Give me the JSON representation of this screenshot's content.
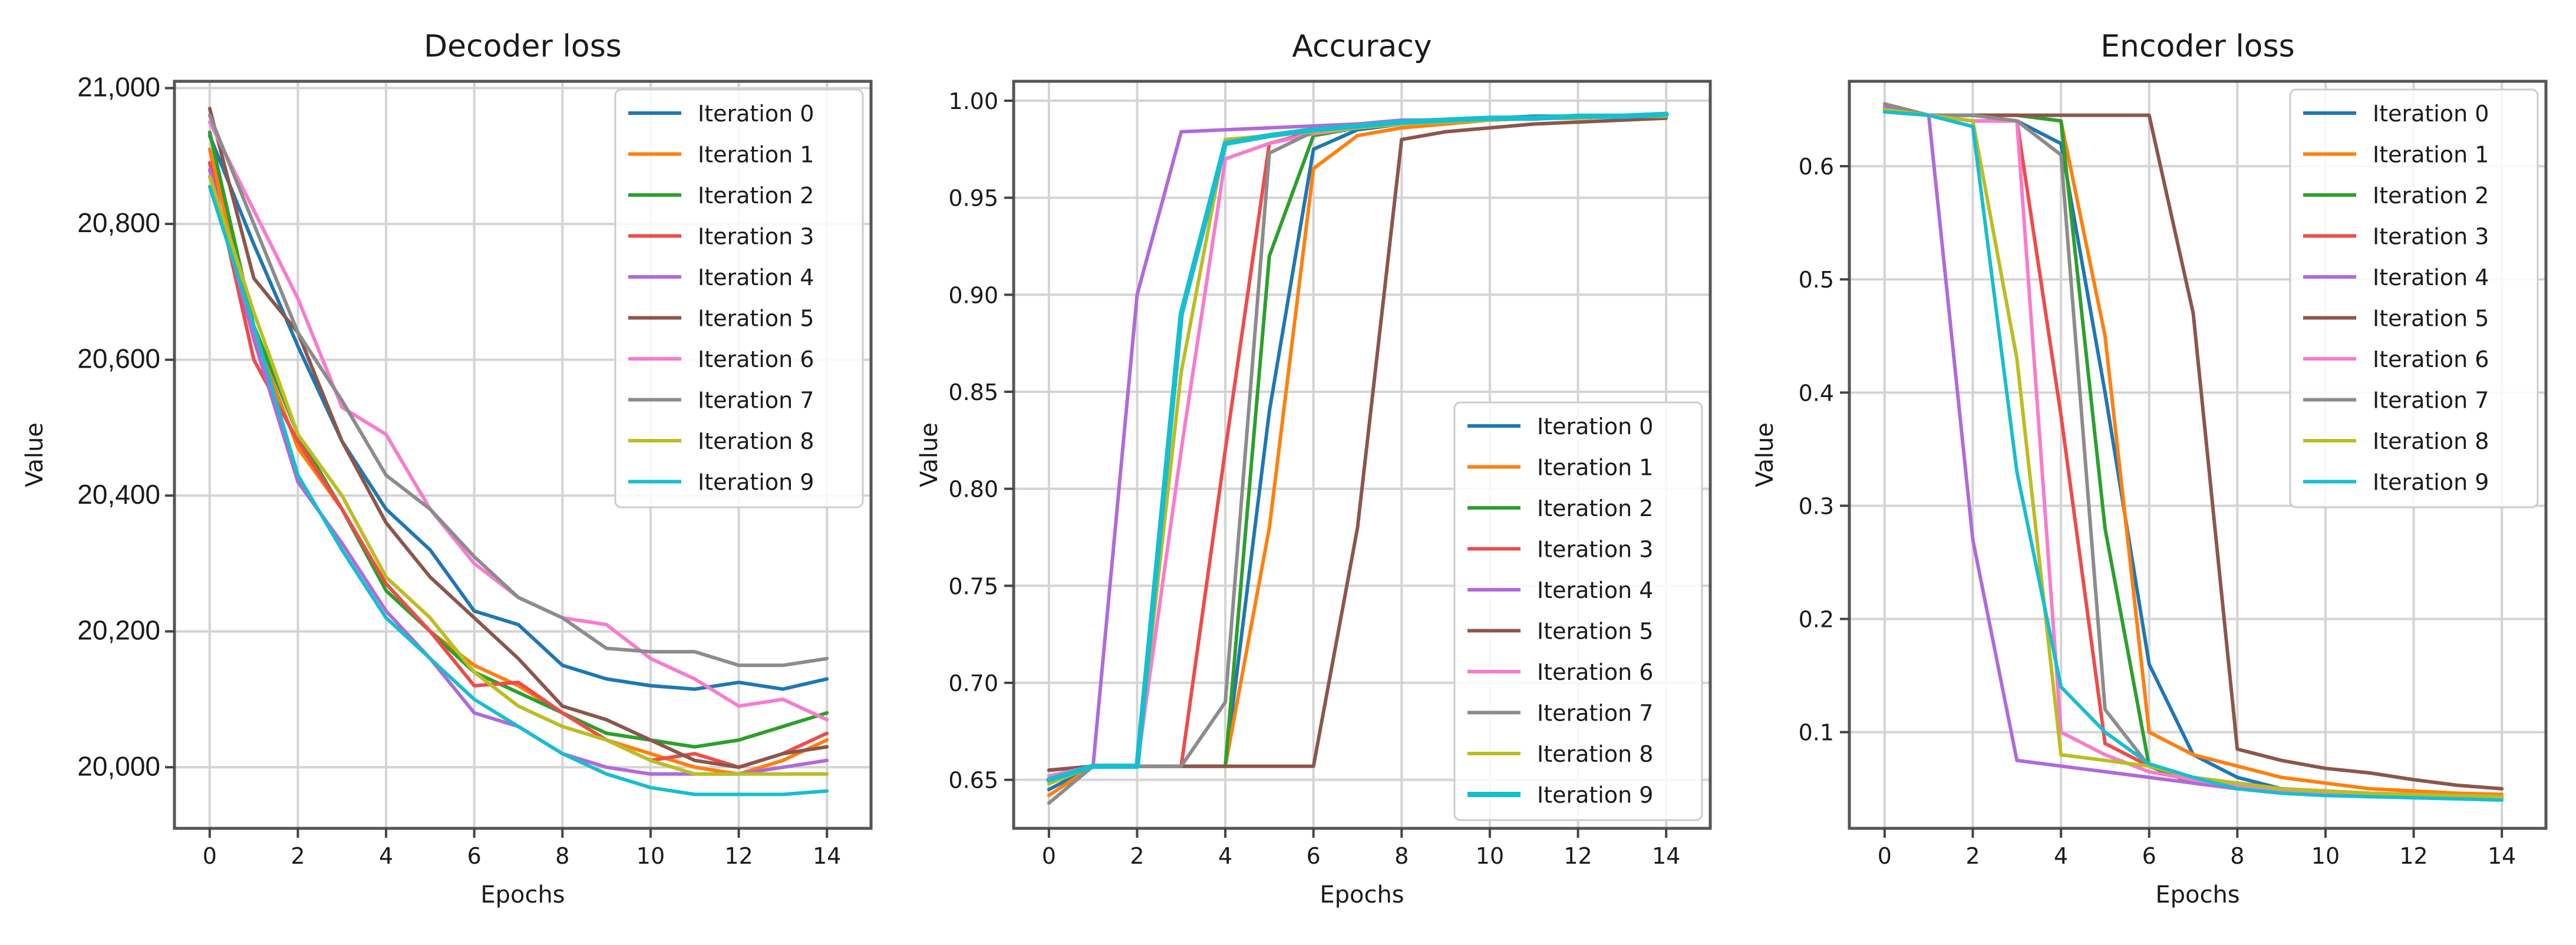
{
  "chart_data": [
    {
      "type": "line",
      "title": "Decoder loss",
      "xlabel": "Epochs",
      "ylabel": "Value",
      "xlim": [
        -0.8,
        15
      ],
      "ylim": [
        19910,
        21010
      ],
      "xticks": [
        "0",
        "2",
        "4",
        "6",
        "8",
        "10",
        "12",
        "14"
      ],
      "xtick_values": [
        0,
        2,
        4,
        6,
        8,
        10,
        12,
        14
      ],
      "yticks": [
        "20,000",
        "20,200",
        "20,400",
        "20,600",
        "20,800",
        "21,000"
      ],
      "ytick_values": [
        20000,
        20200,
        20400,
        20600,
        20800,
        21000
      ],
      "grid": true,
      "legend_position": "top-right",
      "x": [
        0,
        1,
        2,
        3,
        4,
        5,
        6,
        7,
        8,
        9,
        10,
        11,
        12,
        13,
        14
      ],
      "series": [
        {
          "name": "Iteration 0",
          "color": "#1f77b4",
          "values": [
            20930,
            20770,
            20620,
            20480,
            20380,
            20320,
            20230,
            20210,
            20150,
            20130,
            20120,
            20115,
            20125,
            20115,
            20130
          ]
        },
        {
          "name": "Iteration 1",
          "color": "#ff7f0e",
          "values": [
            20910,
            20640,
            20470,
            20380,
            20270,
            20200,
            20150,
            20120,
            20080,
            20040,
            20020,
            20000,
            19990,
            20010,
            20040
          ]
        },
        {
          "name": "Iteration 2",
          "color": "#2ca02c",
          "values": [
            20935,
            20650,
            20490,
            20380,
            20260,
            20200,
            20140,
            20110,
            20080,
            20050,
            20040,
            20030,
            20040,
            20060,
            20080
          ]
        },
        {
          "name": "Iteration 3",
          "color": "#ef4b4b",
          "values": [
            20890,
            20600,
            20480,
            20380,
            20270,
            20200,
            20120,
            20125,
            20080,
            20040,
            20010,
            20020,
            20000,
            20020,
            20050
          ]
        },
        {
          "name": "Iteration 4",
          "color": "#b06ad9",
          "values": [
            20880,
            20630,
            20420,
            20330,
            20230,
            20160,
            20080,
            20060,
            20020,
            20000,
            19990,
            19990,
            19990,
            20000,
            20010
          ]
        },
        {
          "name": "Iteration 5",
          "color": "#8c564b",
          "values": [
            20970,
            20720,
            20640,
            20480,
            20360,
            20280,
            20220,
            20160,
            20090,
            20070,
            20040,
            20010,
            20000,
            20020,
            20030
          ]
        },
        {
          "name": "Iteration 6",
          "color": "#f77ccd",
          "values": [
            20950,
            20820,
            20690,
            20530,
            20490,
            20380,
            20300,
            20250,
            20220,
            20210,
            20160,
            20130,
            20090,
            20100,
            20070
          ]
        },
        {
          "name": "Iteration 7",
          "color": "#8c8c8c",
          "values": [
            20960,
            20800,
            20640,
            20540,
            20430,
            20380,
            20310,
            20250,
            20220,
            20175,
            20170,
            20170,
            20150,
            20150,
            20160
          ]
        },
        {
          "name": "Iteration 8",
          "color": "#bcbd22",
          "values": [
            20870,
            20670,
            20490,
            20400,
            20280,
            20220,
            20140,
            20090,
            20060,
            20040,
            20010,
            19990,
            19990,
            19990,
            19990
          ]
        },
        {
          "name": "Iteration 9",
          "color": "#17becf",
          "values": [
            20855,
            20650,
            20430,
            20320,
            20220,
            20160,
            20100,
            20060,
            20020,
            19990,
            19970,
            19960,
            19960,
            19960,
            19965
          ]
        }
      ]
    },
    {
      "type": "line",
      "title": "Accuracy",
      "xlabel": "Epochs",
      "ylabel": "Value",
      "xlim": [
        -0.8,
        15
      ],
      "ylim": [
        0.625,
        1.01
      ],
      "xticks": [
        "0",
        "2",
        "4",
        "6",
        "8",
        "10",
        "12",
        "14"
      ],
      "xtick_values": [
        0,
        2,
        4,
        6,
        8,
        10,
        12,
        14
      ],
      "yticks": [
        "0.65",
        "0.70",
        "0.75",
        "0.80",
        "0.85",
        "0.90",
        "0.95",
        "1.00"
      ],
      "ytick_values": [
        0.65,
        0.7,
        0.75,
        0.8,
        0.85,
        0.9,
        0.95,
        1.0
      ],
      "grid": true,
      "legend_position": "bottom-right",
      "x": [
        0,
        1,
        2,
        3,
        4,
        5,
        6,
        7,
        8,
        9,
        10,
        11,
        12,
        13,
        14
      ],
      "series": [
        {
          "name": "Iteration 0",
          "color": "#1f77b4",
          "values": [
            0.645,
            0.657,
            0.657,
            0.657,
            0.657,
            0.84,
            0.975,
            0.985,
            0.988,
            0.99,
            0.991,
            0.992,
            0.992,
            0.992,
            0.993
          ]
        },
        {
          "name": "Iteration 1",
          "color": "#ff7f0e",
          "values": [
            0.642,
            0.657,
            0.657,
            0.657,
            0.657,
            0.78,
            0.965,
            0.982,
            0.986,
            0.988,
            0.99,
            0.991,
            0.991,
            0.992,
            0.992
          ]
        },
        {
          "name": "Iteration 2",
          "color": "#2ca02c",
          "values": [
            0.65,
            0.657,
            0.657,
            0.657,
            0.657,
            0.92,
            0.982,
            0.986,
            0.988,
            0.99,
            0.991,
            0.991,
            0.992,
            0.992,
            0.992
          ]
        },
        {
          "name": "Iteration 3",
          "color": "#ef4b4b",
          "values": [
            0.655,
            0.657,
            0.657,
            0.657,
            0.82,
            0.978,
            0.984,
            0.987,
            0.989,
            0.99,
            0.991,
            0.991,
            0.992,
            0.992,
            0.992
          ]
        },
        {
          "name": "Iteration 4",
          "color": "#b06ad9",
          "values": [
            0.655,
            0.657,
            0.9,
            0.984,
            0.985,
            0.986,
            0.987,
            0.988,
            0.99,
            0.99,
            0.991,
            0.991,
            0.992,
            0.992,
            0.992
          ]
        },
        {
          "name": "Iteration 5",
          "color": "#8c564b",
          "values": [
            0.655,
            0.657,
            0.657,
            0.657,
            0.657,
            0.657,
            0.657,
            0.78,
            0.98,
            0.984,
            0.986,
            0.988,
            0.989,
            0.99,
            0.991
          ]
        },
        {
          "name": "Iteration 6",
          "color": "#f77ccd",
          "values": [
            0.652,
            0.657,
            0.657,
            0.82,
            0.97,
            0.978,
            0.983,
            0.986,
            0.988,
            0.989,
            0.99,
            0.991,
            0.991,
            0.992,
            0.992
          ]
        },
        {
          "name": "Iteration 7",
          "color": "#8c8c8c",
          "values": [
            0.638,
            0.657,
            0.657,
            0.657,
            0.69,
            0.973,
            0.984,
            0.987,
            0.988,
            0.99,
            0.991,
            0.991,
            0.992,
            0.992,
            0.992
          ]
        },
        {
          "name": "Iteration 8",
          "color": "#bcbd22",
          "values": [
            0.648,
            0.657,
            0.657,
            0.86,
            0.98,
            0.982,
            0.984,
            0.986,
            0.988,
            0.989,
            0.99,
            0.991,
            0.991,
            0.992,
            0.992
          ]
        },
        {
          "name": "Iteration 9",
          "color": "#17becf",
          "values": [
            0.65,
            0.657,
            0.657,
            0.89,
            0.978,
            0.982,
            0.985,
            0.987,
            0.989,
            0.99,
            0.991,
            0.991,
            0.992,
            0.992,
            0.993
          ]
        }
      ]
    },
    {
      "type": "line",
      "title": "Encoder loss",
      "xlabel": "Epochs",
      "ylabel": "Value",
      "xlim": [
        -0.8,
        15
      ],
      "ylim": [
        0.015,
        0.675
      ],
      "xticks": [
        "0",
        "2",
        "4",
        "6",
        "8",
        "10",
        "12",
        "14"
      ],
      "xtick_values": [
        0,
        2,
        4,
        6,
        8,
        10,
        12,
        14
      ],
      "yticks": [
        "0.1",
        "0.2",
        "0.3",
        "0.4",
        "0.5",
        "0.6"
      ],
      "ytick_values": [
        0.1,
        0.2,
        0.3,
        0.4,
        0.5,
        0.6
      ],
      "grid": true,
      "legend_position": "top-right",
      "x": [
        0,
        1,
        2,
        3,
        4,
        5,
        6,
        7,
        8,
        9,
        10,
        11,
        12,
        13,
        14
      ],
      "series": [
        {
          "name": "Iteration 0",
          "color": "#1f77b4",
          "values": [
            0.65,
            0.645,
            0.64,
            0.64,
            0.62,
            0.4,
            0.16,
            0.08,
            0.06,
            0.05,
            0.048,
            0.046,
            0.045,
            0.044,
            0.043
          ]
        },
        {
          "name": "Iteration 1",
          "color": "#ff7f0e",
          "values": [
            0.648,
            0.645,
            0.645,
            0.645,
            0.64,
            0.45,
            0.1,
            0.08,
            0.07,
            0.06,
            0.055,
            0.05,
            0.048,
            0.046,
            0.045
          ]
        },
        {
          "name": "Iteration 2",
          "color": "#2ca02c",
          "values": [
            0.65,
            0.645,
            0.645,
            0.645,
            0.64,
            0.28,
            0.07,
            0.055,
            0.05,
            0.048,
            0.046,
            0.045,
            0.044,
            0.043,
            0.042
          ]
        },
        {
          "name": "Iteration 3",
          "color": "#ef4b4b",
          "values": [
            0.65,
            0.645,
            0.645,
            0.64,
            0.38,
            0.09,
            0.07,
            0.06,
            0.05,
            0.048,
            0.046,
            0.045,
            0.044,
            0.043,
            0.042
          ]
        },
        {
          "name": "Iteration 4",
          "color": "#b06ad9",
          "values": [
            0.652,
            0.645,
            0.27,
            0.075,
            0.07,
            0.065,
            0.06,
            0.055,
            0.05,
            0.048,
            0.046,
            0.045,
            0.044,
            0.043,
            0.042
          ]
        },
        {
          "name": "Iteration 5",
          "color": "#8c564b",
          "values": [
            0.655,
            0.645,
            0.645,
            0.645,
            0.645,
            0.645,
            0.645,
            0.47,
            0.085,
            0.075,
            0.068,
            0.064,
            0.058,
            0.053,
            0.05
          ]
        },
        {
          "name": "Iteration 6",
          "color": "#f77ccd",
          "values": [
            0.648,
            0.645,
            0.64,
            0.64,
            0.1,
            0.08,
            0.065,
            0.058,
            0.052,
            0.048,
            0.046,
            0.045,
            0.044,
            0.043,
            0.042
          ]
        },
        {
          "name": "Iteration 7",
          "color": "#8c8c8c",
          "values": [
            0.655,
            0.645,
            0.645,
            0.64,
            0.61,
            0.12,
            0.07,
            0.06,
            0.055,
            0.05,
            0.048,
            0.046,
            0.045,
            0.044,
            0.043
          ]
        },
        {
          "name": "Iteration 8",
          "color": "#bcbd22",
          "values": [
            0.65,
            0.645,
            0.64,
            0.43,
            0.08,
            0.075,
            0.07,
            0.06,
            0.055,
            0.05,
            0.048,
            0.046,
            0.045,
            0.044,
            0.043
          ]
        },
        {
          "name": "Iteration 9",
          "color": "#17becf",
          "values": [
            0.648,
            0.645,
            0.635,
            0.33,
            0.14,
            0.1,
            0.072,
            0.06,
            0.05,
            0.046,
            0.044,
            0.043,
            0.042,
            0.041,
            0.04
          ]
        }
      ]
    }
  ]
}
